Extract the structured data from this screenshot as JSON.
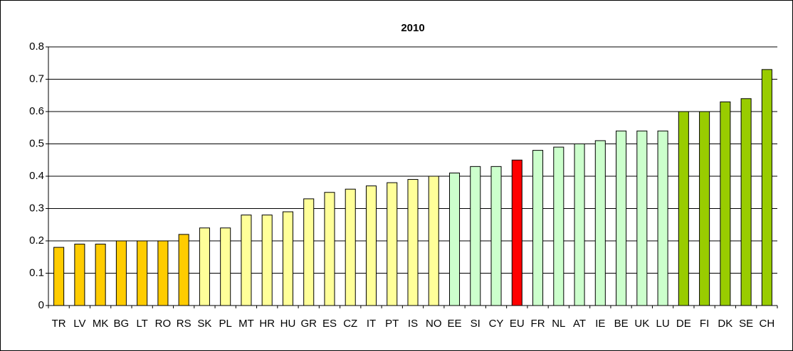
{
  "chart_data": {
    "type": "bar",
    "title": "2010",
    "categories": [
      "TR",
      "LV",
      "MK",
      "BG",
      "LT",
      "RO",
      "RS",
      "SK",
      "PL",
      "MT",
      "HR",
      "HU",
      "GR",
      "ES",
      "CZ",
      "IT",
      "PT",
      "IS",
      "NO",
      "EE",
      "SI",
      "CY",
      "EU",
      "FR",
      "NL",
      "AT",
      "IE",
      "BE",
      "UK",
      "LU",
      "DE",
      "FI",
      "DK",
      "SE",
      "CH"
    ],
    "values": [
      0.18,
      0.19,
      0.19,
      0.2,
      0.2,
      0.2,
      0.22,
      0.24,
      0.24,
      0.28,
      0.28,
      0.29,
      0.33,
      0.35,
      0.36,
      0.37,
      0.38,
      0.39,
      0.4,
      0.41,
      0.43,
      0.43,
      0.45,
      0.48,
      0.49,
      0.5,
      0.51,
      0.54,
      0.54,
      0.54,
      0.6,
      0.6,
      0.63,
      0.64,
      0.73
    ],
    "colors": [
      "#ffcc00",
      "#ffcc00",
      "#ffcc00",
      "#ffcc00",
      "#ffcc00",
      "#ffcc00",
      "#ffcc00",
      "#ffff99",
      "#ffff99",
      "#ffff99",
      "#ffff99",
      "#ffff99",
      "#ffff99",
      "#ffff99",
      "#ffff99",
      "#ffff99",
      "#ffff99",
      "#ffff99",
      "#ffff99",
      "#ccffcc",
      "#ccffcc",
      "#ccffcc",
      "#ff0000",
      "#ccffcc",
      "#ccffcc",
      "#ccffcc",
      "#ccffcc",
      "#ccffcc",
      "#ccffcc",
      "#ccffcc",
      "#99cc00",
      "#99cc00",
      "#99cc00",
      "#99cc00",
      "#99cc00"
    ],
    "ylim": [
      0,
      0.8
    ],
    "yticks": [
      0,
      0.1,
      0.2,
      0.3,
      0.4,
      0.5,
      0.6,
      0.7,
      0.8
    ],
    "grid": true
  }
}
